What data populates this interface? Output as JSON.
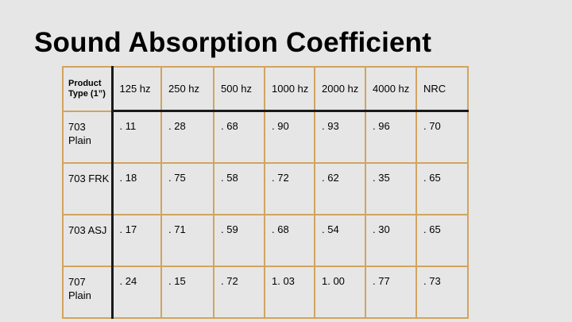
{
  "slide": {
    "title": "Sound Absorption Coefficient"
  },
  "table": {
    "headers": [
      "Product Type (1”)",
      "125 hz",
      "250 hz",
      "500 hz",
      "1000 hz",
      "2000 hz",
      "4000 hz",
      "NRC"
    ],
    "rows": [
      [
        "703 Plain",
        ". 11",
        ". 28",
        ". 68",
        ". 90",
        ". 93",
        ". 96",
        ". 70"
      ],
      [
        "703 FRK",
        ". 18",
        ". 75",
        ". 58",
        ". 72",
        ". 62",
        ". 35",
        ". 65"
      ],
      [
        "703 ASJ",
        ". 17",
        ". 71",
        ". 59",
        ". 68",
        ". 54",
        ". 30",
        ". 65"
      ],
      [
        "707 Plain",
        ". 24",
        ". 15",
        ". 72",
        "1. 03",
        "1. 00",
        ". 77",
        ". 73"
      ]
    ]
  },
  "colors": {
    "background": "#e6e6e6",
    "border": "#d1a45f",
    "header_rule": "#1a1a1a"
  }
}
